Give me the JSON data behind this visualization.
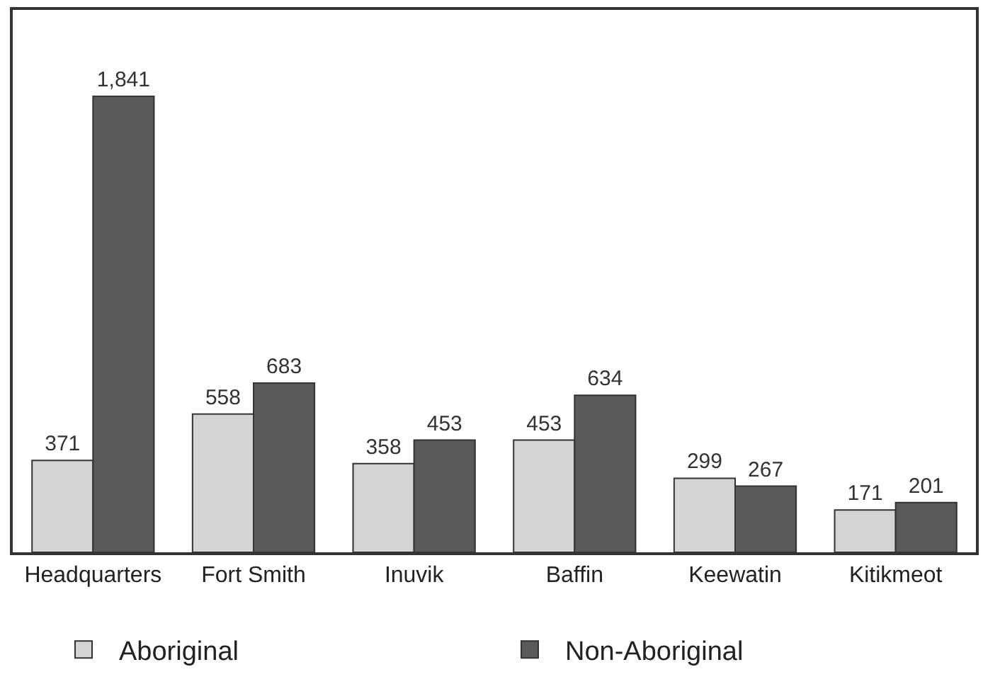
{
  "chart_data": {
    "type": "bar",
    "categories": [
      "Headquarters",
      "Fort Smith",
      "Inuvik",
      "Baffin",
      "Keewatin",
      "Kitikmeot"
    ],
    "series": [
      {
        "name": "Aboriginal",
        "color": "#d4d4d4",
        "values": [
          371,
          558,
          358,
          453,
          299,
          171
        ],
        "value_labels": [
          "371",
          "558",
          "358",
          "453",
          "299",
          "171"
        ]
      },
      {
        "name": "Non-Aboriginal",
        "color": "#5a5a5a",
        "values": [
          1841,
          683,
          453,
          634,
          267,
          201
        ],
        "value_labels": [
          "1,841",
          "683",
          "453",
          "634",
          "267",
          "201"
        ]
      }
    ],
    "ylim": [
      0,
      2190
    ],
    "tick_labels": "x",
    "legend": "bottom"
  }
}
